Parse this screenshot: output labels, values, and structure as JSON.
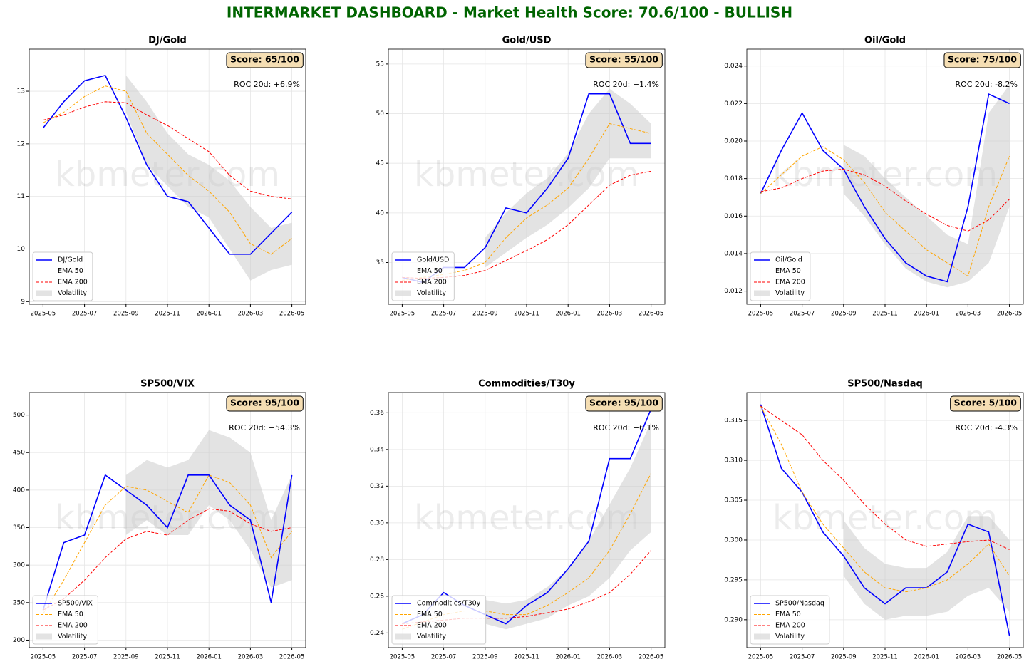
{
  "title": "INTERMARKET DASHBOARD - Market Health Score: 70.6/100 - BULLISH",
  "chart_data": [
    {
      "type": "line",
      "title": "DJ/Gold",
      "watermark": "kbmeter.com",
      "score": "Score: 65/100",
      "roc": "ROC 20d: +6.9%",
      "x": [
        "2025-05",
        "2025-06",
        "2025-07",
        "2025-08",
        "2025-09",
        "2025-10",
        "2025-11",
        "2025-12",
        "2026-01",
        "2026-02",
        "2026-03",
        "2026-04",
        "2026-05"
      ],
      "xticks": [
        "2025-05",
        "2025-07",
        "2025-09",
        "2025-11",
        "2026-01",
        "2026-03",
        "2026-05"
      ],
      "ylim": [
        8.95,
        13.8
      ],
      "yticks": [
        9,
        10,
        11,
        12,
        13
      ],
      "grid": true,
      "legend": "lower left",
      "series": [
        {
          "name": "DJ/Gold",
          "color": "#0000ff",
          "style": "solid",
          "values": [
            12.3,
            12.8,
            13.2,
            13.3,
            12.5,
            11.6,
            11.0,
            10.9,
            10.4,
            9.9,
            9.9,
            10.3,
            10.7
          ]
        },
        {
          "name": "EMA 50",
          "color": "#ffa500",
          "style": "dashed",
          "values": [
            12.4,
            12.6,
            12.9,
            13.1,
            13.0,
            12.2,
            11.8,
            11.4,
            11.1,
            10.7,
            10.1,
            9.9,
            10.2
          ]
        },
        {
          "name": "EMA 200",
          "color": "#ff0000",
          "style": "dashed",
          "values": [
            12.45,
            12.55,
            12.7,
            12.8,
            12.78,
            12.55,
            12.35,
            12.1,
            11.85,
            11.4,
            11.1,
            11.0,
            10.95
          ]
        }
      ],
      "band": {
        "name": "Volatility",
        "color": "#c8c8c8",
        "lower": [
          null,
          null,
          null,
          null,
          12.6,
          11.6,
          11.2,
          10.8,
          10.6,
          10.0,
          9.4,
          9.6,
          9.7
        ],
        "upper": [
          null,
          null,
          null,
          null,
          13.3,
          12.8,
          12.2,
          11.8,
          11.6,
          11.3,
          10.8,
          10.4,
          10.5
        ]
      }
    },
    {
      "type": "line",
      "title": "Gold/USD",
      "watermark": "kbmeter.com",
      "score": "Score: 55/100",
      "roc": "ROC 20d: +1.4%",
      "x": [
        "2025-05",
        "2025-06",
        "2025-07",
        "2025-08",
        "2025-09",
        "2025-10",
        "2025-11",
        "2025-12",
        "2026-01",
        "2026-02",
        "2026-03",
        "2026-04",
        "2026-05"
      ],
      "xticks": [
        "2025-05",
        "2025-07",
        "2025-09",
        "2025-11",
        "2026-01",
        "2026-03",
        "2026-05"
      ],
      "ylim": [
        30.8,
        56.5
      ],
      "yticks": [
        35,
        40,
        45,
        50,
        55
      ],
      "grid": true,
      "legend": "lower left",
      "series": [
        {
          "name": "Gold/USD",
          "color": "#0000ff",
          "style": "solid",
          "values": [
            33.5,
            33.0,
            34.5,
            34.5,
            36.5,
            40.5,
            40.0,
            42.5,
            45.5,
            52,
            52,
            47,
            47
          ]
        },
        {
          "name": "EMA 50",
          "color": "#ffa500",
          "style": "dashed",
          "values": [
            33.2,
            33.5,
            33.8,
            34.2,
            35.0,
            37.5,
            39.5,
            40.8,
            42.5,
            45.5,
            49,
            48.5,
            48
          ]
        },
        {
          "name": "EMA 200",
          "color": "#ff0000",
          "style": "dashed",
          "values": [
            33.5,
            33.4,
            33.5,
            33.7,
            34.2,
            35.2,
            36.2,
            37.3,
            38.8,
            40.8,
            42.8,
            43.8,
            44.2
          ]
        }
      ],
      "band": {
        "name": "Volatility",
        "color": "#c8c8c8",
        "lower": [
          null,
          null,
          null,
          null,
          34.5,
          36,
          37.5,
          38.8,
          40.5,
          42.5,
          45.5,
          45.5,
          45.5
        ],
        "upper": [
          null,
          null,
          null,
          null,
          37.5,
          40,
          42,
          43.5,
          46,
          50,
          52.5,
          51,
          49
        ]
      }
    },
    {
      "type": "line",
      "title": "Oil/Gold",
      "watermark": "kbmeter.com",
      "score": "Score: 75/100",
      "roc": "ROC 20d: -8.2%",
      "x": [
        "2025-05",
        "2025-06",
        "2025-07",
        "2025-08",
        "2025-09",
        "2025-10",
        "2025-11",
        "2025-12",
        "2026-01",
        "2026-02",
        "2026-03",
        "2026-04",
        "2026-05"
      ],
      "xticks": [
        "2025-05",
        "2025-07",
        "2025-09",
        "2025-11",
        "2026-01",
        "2026-03",
        "2026-05"
      ],
      "ylim": [
        0.0113,
        0.0249
      ],
      "yticks": [
        0.012,
        0.014,
        0.016,
        0.018,
        {
          "value": 0.02,
          "label": "0.020"
        },
        0.022,
        0.024
      ],
      "grid": true,
      "legend": "lower left",
      "series": [
        {
          "name": "Oil/Gold",
          "color": "#0000ff",
          "style": "solid",
          "values": [
            0.0172,
            0.0195,
            0.0215,
            0.0195,
            0.0185,
            0.0165,
            0.0148,
            0.0135,
            0.0128,
            0.0125,
            0.0165,
            0.0225,
            0.022
          ]
        },
        {
          "name": "EMA 50",
          "color": "#ffa500",
          "style": "dashed",
          "values": [
            0.0172,
            0.0182,
            0.0192,
            0.0197,
            0.019,
            0.0178,
            0.0162,
            0.0152,
            0.0142,
            0.0135,
            0.0128,
            0.0165,
            0.0192
          ]
        },
        {
          "name": "EMA 200",
          "color": "#ff0000",
          "style": "dashed",
          "values": [
            0.0173,
            0.0175,
            0.018,
            0.0184,
            0.0185,
            0.0182,
            0.0176,
            0.0168,
            0.0161,
            0.0155,
            0.0152,
            0.0158,
            0.0169
          ]
        }
      ],
      "band": {
        "name": "Volatility",
        "color": "#c8c8c8",
        "lower": [
          null,
          null,
          null,
          null,
          0.0172,
          0.016,
          0.0145,
          0.0132,
          0.0125,
          0.0122,
          0.0125,
          0.0135,
          0.0165
        ],
        "upper": [
          null,
          null,
          null,
          null,
          0.0198,
          0.0192,
          0.018,
          0.017,
          0.016,
          0.015,
          0.0145,
          0.0215,
          0.023
        ]
      }
    },
    {
      "type": "line",
      "title": "SP500/VIX",
      "watermark": "kbmeter.com",
      "score": "Score: 95/100",
      "roc": "ROC 20d: +54.3%",
      "x": [
        "2025-05",
        "2025-06",
        "2025-07",
        "2025-08",
        "2025-09",
        "2025-10",
        "2025-11",
        "2025-12",
        "2026-01",
        "2026-02",
        "2026-03",
        "2026-04",
        "2026-05"
      ],
      "xticks": [
        "2025-05",
        "2025-07",
        "2025-09",
        "2025-11",
        "2026-01",
        "2026-03",
        "2026-05"
      ],
      "ylim": [
        190,
        530
      ],
      "yticks": [
        200,
        250,
        300,
        350,
        400,
        450,
        500
      ],
      "grid": true,
      "legend": "lower left",
      "series": [
        {
          "name": "SP500/VIX",
          "color": "#0000ff",
          "style": "solid",
          "values": [
            240,
            330,
            340,
            420,
            400,
            380,
            350,
            420,
            420,
            380,
            360,
            250,
            420
          ]
        },
        {
          "name": "EMA 50",
          "color": "#ffa500",
          "style": "dashed",
          "values": [
            235,
            280,
            330,
            380,
            405,
            400,
            385,
            370,
            420,
            410,
            380,
            310,
            345
          ]
        },
        {
          "name": "EMA 200",
          "color": "#ff0000",
          "style": "dashed",
          "values": [
            240,
            255,
            280,
            310,
            335,
            345,
            340,
            360,
            375,
            372,
            355,
            345,
            350
          ]
        }
      ],
      "band": {
        "name": "Volatility",
        "color": "#c8c8c8",
        "lower": [
          null,
          null,
          null,
          null,
          340,
          360,
          340,
          340,
          380,
          360,
          320,
          270,
          280
        ],
        "upper": [
          null,
          null,
          null,
          null,
          420,
          440,
          430,
          440,
          480,
          470,
          450,
          360,
          420
        ]
      }
    },
    {
      "type": "line",
      "title": "Commodities/T30y",
      "watermark": "kbmeter.com",
      "score": "Score: 95/100",
      "roc": "ROC 20d: +6.1%",
      "x": [
        "2025-05",
        "2025-06",
        "2025-07",
        "2025-08",
        "2025-09",
        "2025-10",
        "2025-11",
        "2025-12",
        "2026-01",
        "2026-02",
        "2026-03",
        "2026-04",
        "2026-05"
      ],
      "xticks": [
        "2025-05",
        "2025-07",
        "2025-09",
        "2025-11",
        "2026-01",
        "2026-03",
        "2026-05"
      ],
      "ylim": [
        0.232,
        0.371
      ],
      "yticks": [
        0.24,
        0.26,
        0.28,
        {
          "value": 0.3,
          "label": "0.30"
        },
        0.32,
        0.34,
        0.36
      ],
      "grid": true,
      "legend": "lower left",
      "series": [
        {
          "name": "Commodities/T30y",
          "color": "#0000ff",
          "style": "solid",
          "values": [
            0.245,
            0.25,
            0.262,
            0.255,
            0.25,
            0.245,
            0.255,
            0.262,
            0.275,
            0.29,
            0.335,
            0.335,
            0.362
          ]
        },
        {
          "name": "EMA 50",
          "color": "#ffa500",
          "style": "dashed",
          "values": [
            0.242,
            0.246,
            0.25,
            0.252,
            0.252,
            0.25,
            0.25,
            0.255,
            0.262,
            0.27,
            0.285,
            0.305,
            0.327
          ]
        },
        {
          "name": "EMA 200",
          "color": "#ff0000",
          "style": "dashed",
          "values": [
            0.245,
            0.246,
            0.247,
            0.248,
            0.248,
            0.248,
            0.249,
            0.251,
            0.253,
            0.257,
            0.262,
            0.272,
            0.285
          ]
        }
      ],
      "band": {
        "name": "Volatility",
        "color": "#c8c8c8",
        "lower": [
          null,
          null,
          null,
          null,
          0.245,
          0.242,
          0.245,
          0.248,
          0.255,
          0.26,
          0.27,
          0.285,
          0.295
        ],
        "upper": [
          null,
          null,
          null,
          null,
          0.258,
          0.256,
          0.258,
          0.265,
          0.275,
          0.29,
          0.31,
          0.33,
          0.355
        ]
      }
    },
    {
      "type": "line",
      "title": "SP500/Nasdaq",
      "watermark": "kbmeter.com",
      "score": "Score: 5/100",
      "roc": "ROC 20d: -4.3%",
      "x": [
        "2025-05",
        "2025-06",
        "2025-07",
        "2025-08",
        "2025-09",
        "2025-10",
        "2025-11",
        "2025-12",
        "2026-01",
        "2026-02",
        "2026-03",
        "2026-04",
        "2026-05"
      ],
      "xticks": [
        "2025-05",
        "2025-07",
        "2025-09",
        "2025-11",
        "2026-01",
        "2026-03",
        "2026-05"
      ],
      "ylim": [
        0.2865,
        0.3185
      ],
      "yticks": [
        {
          "value": 0.29,
          "label": "0.290"
        },
        0.295,
        {
          "value": 0.3,
          "label": "0.300"
        },
        0.305,
        {
          "value": 0.31,
          "label": "0.310"
        },
        0.315
      ],
      "grid": true,
      "legend": "lower left",
      "series": [
        {
          "name": "SP500/Nasdaq",
          "color": "#0000ff",
          "style": "solid",
          "values": [
            0.317,
            0.309,
            0.306,
            0.301,
            0.298,
            0.294,
            0.292,
            0.294,
            0.294,
            0.296,
            0.302,
            0.301,
            0.288
          ]
        },
        {
          "name": "EMA 50",
          "color": "#ffa500",
          "style": "dashed",
          "values": [
            0.3168,
            0.312,
            0.306,
            0.302,
            0.299,
            0.296,
            0.294,
            0.2935,
            0.294,
            0.295,
            0.297,
            0.2995,
            0.2955
          ]
        },
        {
          "name": "EMA 200",
          "color": "#ff0000",
          "style": "dashed",
          "values": [
            0.3168,
            0.315,
            0.3132,
            0.31,
            0.3075,
            0.3045,
            0.302,
            0.3,
            0.2992,
            0.2995,
            0.2998,
            0.3,
            0.2988
          ]
        }
      ],
      "band": {
        "name": "Volatility",
        "color": "#c8c8c8",
        "lower": [
          null,
          null,
          null,
          null,
          0.2955,
          0.292,
          0.29,
          0.2905,
          0.2905,
          0.291,
          0.293,
          0.294,
          0.291
        ],
        "upper": [
          null,
          null,
          null,
          null,
          0.3025,
          0.299,
          0.297,
          0.2965,
          0.2965,
          0.2985,
          0.303,
          0.303,
          0.3
        ]
      }
    }
  ]
}
